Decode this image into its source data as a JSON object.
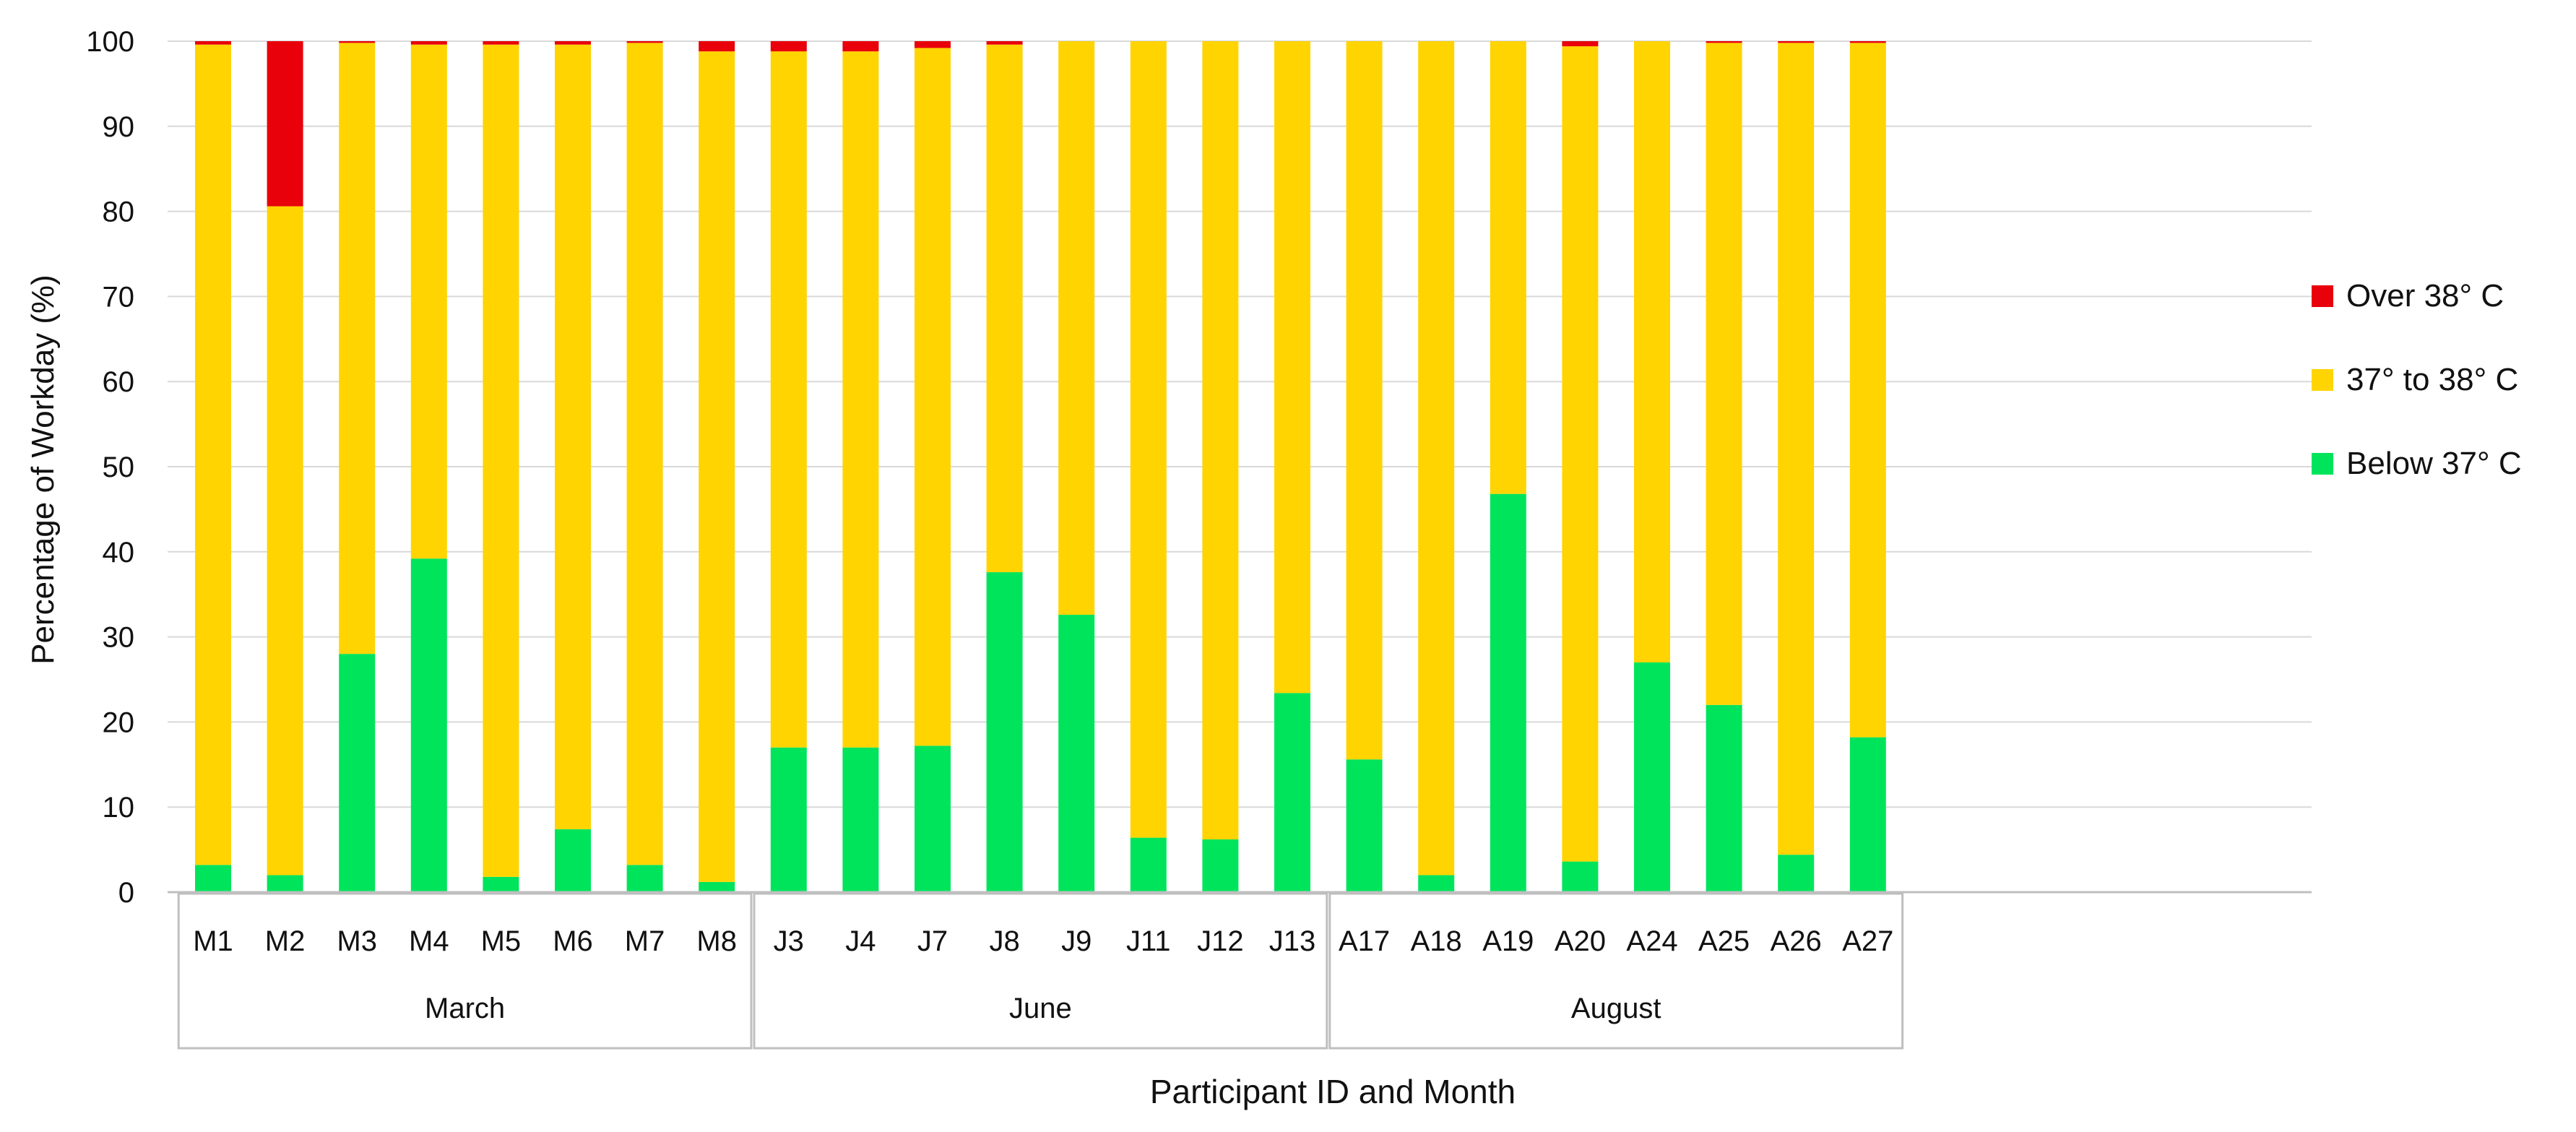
{
  "chart_data": {
    "type": "bar",
    "stacked": true,
    "title": "",
    "xlabel": "Participant ID and Month",
    "ylabel": "Percentage of Workday (%)",
    "ylim": [
      0,
      100
    ],
    "yticks": [
      0,
      10,
      20,
      30,
      40,
      50,
      60,
      70,
      80,
      90,
      100
    ],
    "grid": "horizontal",
    "legend_position": "right",
    "categories": [
      "M1",
      "M2",
      "M3",
      "M4",
      "M5",
      "M6",
      "M7",
      "M8",
      "J3",
      "J4",
      "J7",
      "J8",
      "J9",
      "J11",
      "J12",
      "J13",
      "A17",
      "A18",
      "A19",
      "A20",
      "A24",
      "A25",
      "A26",
      "A27"
    ],
    "groups": [
      {
        "label": "March",
        "count": 8
      },
      {
        "label": "June",
        "count": 8
      },
      {
        "label": "August",
        "count": 8
      }
    ],
    "series": [
      {
        "name": "Below 37° C",
        "color": "#00e45c",
        "values": [
          3.2,
          2.0,
          28.0,
          39.2,
          1.8,
          7.4,
          3.2,
          1.2,
          17.0,
          17.0,
          17.2,
          37.6,
          32.6,
          6.4,
          6.2,
          23.4,
          15.6,
          2.0,
          46.8,
          3.6,
          27.0,
          22.0,
          4.4,
          18.2
        ]
      },
      {
        "name": "37° to 38° C",
        "color": "#ffd400",
        "values": [
          96.4,
          78.6,
          71.8,
          60.4,
          97.8,
          92.2,
          96.6,
          97.6,
          81.8,
          81.8,
          82.0,
          62.0,
          67.4,
          93.6,
          93.8,
          76.6,
          84.4,
          98.0,
          53.2,
          95.8,
          73.0,
          77.8,
          95.4,
          81.6
        ]
      },
      {
        "name": "Over 38° C",
        "color": "#e8000b",
        "values": [
          0.4,
          19.4,
          0.2,
          0.4,
          0.4,
          0.4,
          0.2,
          1.2,
          1.2,
          1.2,
          0.8,
          0.4,
          0.0,
          0.0,
          0.0,
          0.0,
          0.0,
          0.0,
          0.0,
          0.6,
          0.0,
          0.2,
          0.2,
          0.2
        ]
      }
    ],
    "legend_order": [
      "Over 38° C",
      "37° to 38° C",
      "Below 37° C"
    ]
  }
}
